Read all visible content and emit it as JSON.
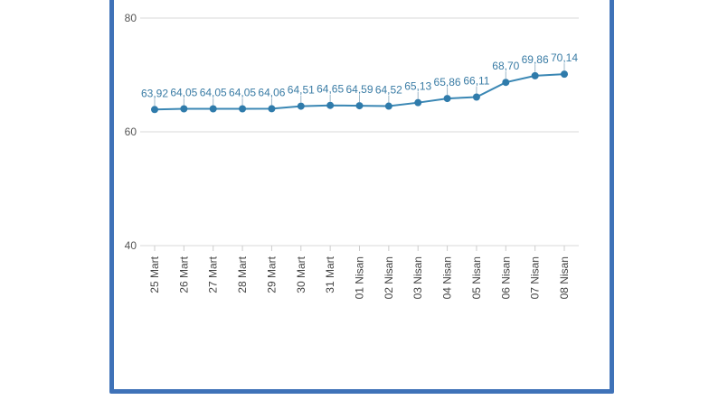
{
  "chart_data": {
    "type": "line",
    "title": "",
    "xlabel": "",
    "ylabel": "",
    "ylim": [
      40,
      80
    ],
    "yticks": [
      40,
      60,
      80
    ],
    "grid": true,
    "categories": [
      "25 Mart",
      "26 Mart",
      "27 Mart",
      "28 Mart",
      "29 Mart",
      "30 Mart",
      "31 Mart",
      "01 Nisan",
      "02 Nisan",
      "03 Nisan",
      "04 Nisan",
      "05 Nisan",
      "06 Nisan",
      "07 Nisan",
      "08 Nisan"
    ],
    "values": [
      63.92,
      64.05,
      64.05,
      64.05,
      64.06,
      64.51,
      64.65,
      64.59,
      64.52,
      65.13,
      65.86,
      66.11,
      68.7,
      69.86,
      70.14
    ],
    "value_labels": [
      "63,92",
      "64,05",
      "64,05",
      "64,05",
      "64,06",
      "64,51",
      "64,65",
      "64,59",
      "64,52",
      "65,13",
      "65,86",
      "66,11",
      "68,70",
      "69,86",
      "70,14"
    ],
    "ytick_labels": [
      "40",
      "60",
      "80"
    ],
    "colors": {
      "line": "#3a87b4",
      "point": "#2f7bab",
      "grid": "#d9d9d9",
      "frame": "#3f72b8"
    }
  }
}
